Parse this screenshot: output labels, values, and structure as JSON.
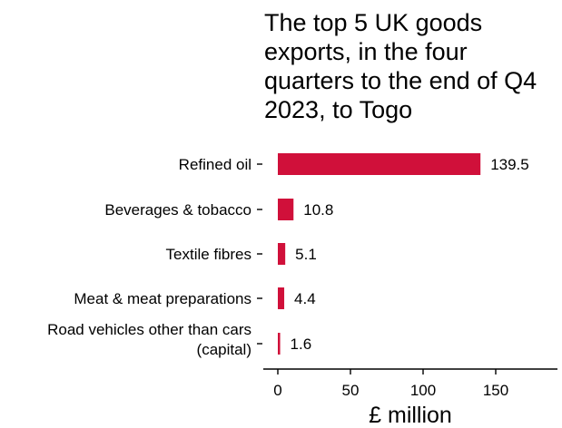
{
  "chart_data": {
    "type": "bar",
    "orientation": "horizontal",
    "title": "The top 5 UK goods exports, in the four quarters to the end of Q4 2023, to Togo",
    "title_lines": [
      "The top 5 UK goods",
      "exports, in the four",
      "quarters to the end of Q4",
      "2023, to Togo"
    ],
    "categories": [
      "Refined oil",
      "Beverages & tobacco",
      "Textile fibres",
      "Meat & meat preparations",
      "Road vehicles other than cars (capital)"
    ],
    "category_label_lines": [
      [
        "Refined oil"
      ],
      [
        "Beverages & tobacco"
      ],
      [
        "Textile fibres"
      ],
      [
        "Meat & meat preparations"
      ],
      [
        "Road vehicles other than cars",
        "(capital)"
      ]
    ],
    "values": [
      139.5,
      10.8,
      5.1,
      4.4,
      1.6
    ],
    "data_labels": [
      "139.5",
      "10.8",
      "5.1",
      "4.4",
      "1.6"
    ],
    "xlabel": "£ million",
    "ylabel": "",
    "xlim": [
      0,
      190
    ],
    "xticks": [
      0,
      50,
      100,
      150
    ],
    "xtick_labels": [
      "0",
      "50",
      "100",
      "150"
    ],
    "grid": false,
    "legend": "none",
    "bar_color": "#d0103a"
  }
}
